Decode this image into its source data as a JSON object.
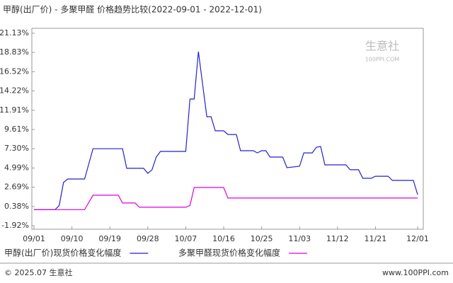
{
  "chart_data": {
    "type": "line",
    "title": "甲醇(出厂价) - 多聚甲醛 价格趋势比较(2022-09-01 - 2022-12-01)",
    "watermark": "生意社",
    "watermark_url": "100PPI.COM",
    "footer_left": "© 2025.07 生意社",
    "footer_right": "www.100PPI.com",
    "xlim": [
      "09/01",
      "12/01"
    ],
    "xticks": [
      "09/01",
      "09/10",
      "09/19",
      "09/28",
      "10/07",
      "10/16",
      "10/25",
      "11/03",
      "11/12",
      "11/21",
      "12/01"
    ],
    "ylim": [
      -1.92,
      21.13
    ],
    "yticks": [
      {
        "value": 21.13,
        "label": "21.13%"
      },
      {
        "value": 18.83,
        "label": "18.83%"
      },
      {
        "value": 16.52,
        "label": "16.52%"
      },
      {
        "value": 14.22,
        "label": "14.22%"
      },
      {
        "value": 11.91,
        "label": "11.91%"
      },
      {
        "value": 9.61,
        "label": "9.61%"
      },
      {
        "value": 7.3,
        "label": "7.30%"
      },
      {
        "value": 4.99,
        "label": "4.99%"
      },
      {
        "value": 2.69,
        "label": "2.69%"
      },
      {
        "value": 0.38,
        "label": "0.38%"
      },
      {
        "value": -1.92,
        "label": "-1.92%"
      }
    ],
    "grid": false,
    "series": [
      {
        "name": "甲醇(出厂价)现货价格变化幅度",
        "color": "#2222cc",
        "x": [
          "09/01",
          "09/06",
          "09/07",
          "09/08",
          "09/09",
          "09/13",
          "09/15",
          "09/22",
          "09/23",
          "09/27",
          "09/28",
          "09/29",
          "09/30",
          "10/01",
          "10/07",
          "10/08",
          "10/09",
          "10/10",
          "10/12",
          "10/13",
          "10/14",
          "10/16",
          "10/17",
          "10/19",
          "10/20",
          "10/23",
          "10/24",
          "10/25",
          "10/26",
          "10/27",
          "10/30",
          "10/31",
          "11/03",
          "11/04",
          "11/06",
          "11/07",
          "11/08",
          "11/09",
          "11/14",
          "11/15",
          "11/17",
          "11/18",
          "11/20",
          "11/21",
          "11/24",
          "11/25",
          "11/30",
          "12/01"
        ],
        "values": [
          0,
          0,
          0.5,
          3.25,
          3.67,
          3.67,
          7.3,
          7.3,
          4.95,
          4.95,
          4.35,
          4.78,
          6.3,
          6.98,
          6.98,
          13.25,
          13.25,
          18.93,
          11.13,
          11.13,
          9.44,
          9.44,
          9.0,
          9.0,
          7.06,
          7.06,
          6.8,
          7.06,
          7.06,
          6.3,
          6.3,
          5.03,
          5.2,
          6.8,
          6.8,
          7.49,
          7.57,
          5.37,
          5.37,
          4.78,
          4.78,
          3.76,
          3.76,
          4.0,
          4.0,
          3.5,
          3.5,
          1.81
        ]
      },
      {
        "name": "多聚甲醛现货价格变化幅度",
        "color": "#dd00dd",
        "x": [
          "09/01",
          "09/13",
          "09/15",
          "09/21",
          "09/22",
          "09/25",
          "09/26",
          "10/07",
          "10/08",
          "10/09",
          "10/16",
          "10/17",
          "12/01"
        ],
        "values": [
          0,
          0,
          1.73,
          1.73,
          0.8,
          0.8,
          0.29,
          0.29,
          0.5,
          2.66,
          2.66,
          1.39,
          1.39
        ]
      }
    ]
  }
}
